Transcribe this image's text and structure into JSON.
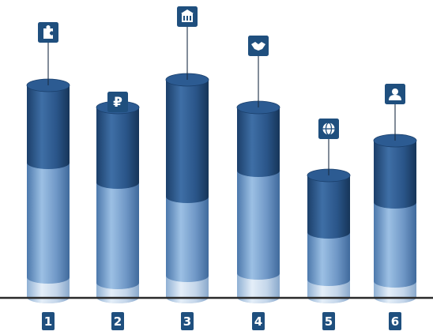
{
  "colors": {
    "badge": "#1f4f7e",
    "badge_text": "#ffffff",
    "bar_dark": "#244e80",
    "bar_mid": "#6f97c6",
    "bar_light": "#c4d6ea",
    "axis": "#2a2a2a"
  },
  "chart_data": {
    "type": "bar",
    "style": "stacked 3D cylinders",
    "categories": [
      "1",
      "2",
      "3",
      "4",
      "5",
      "6"
    ],
    "icons": [
      "puzzle-icon",
      "ruble-icon",
      "building-icon",
      "handshake-icon",
      "globe-icon",
      "user-icon"
    ],
    "series": [
      {
        "values": [
          25,
          18,
          27,
          30,
          22,
          20
        ]
      },
      {
        "values": [
          145,
          127,
          100,
          130,
          60,
          100
        ]
      },
      {
        "values": [
          98,
          95,
          148,
          80,
          72,
          78
        ]
      }
    ],
    "grid": false,
    "legend": "none"
  }
}
